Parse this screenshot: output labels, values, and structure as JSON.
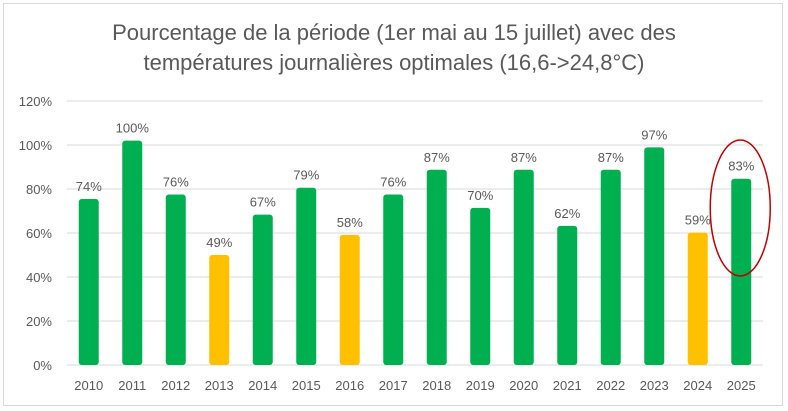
{
  "chart_data": {
    "type": "bar",
    "title_line1": "Pourcentage de la période (1er mai au 15 juillet) avec des",
    "title_line2": "températures journalières optimales  (16,6->24,8°C)",
    "xlabel": "",
    "ylabel": "",
    "ylim": [
      0,
      120
    ],
    "yticks": [
      0,
      20,
      40,
      60,
      80,
      100,
      120
    ],
    "ytick_labels": [
      "0%",
      "20%",
      "40%",
      "60%",
      "80%",
      "100%",
      "120%"
    ],
    "grid": true,
    "categories": [
      "2010",
      "2011",
      "2012",
      "2013",
      "2014",
      "2015",
      "2016",
      "2017",
      "2018",
      "2019",
      "2020",
      "2021",
      "2022",
      "2023",
      "2024",
      "2025"
    ],
    "values": [
      74,
      100,
      76,
      49,
      67,
      79,
      58,
      76,
      87,
      70,
      87,
      62,
      87,
      97,
      59,
      83
    ],
    "data_labels": [
      "74%",
      "100%",
      "76%",
      "49%",
      "67%",
      "79%",
      "58%",
      "76%",
      "87%",
      "70%",
      "87%",
      "62%",
      "87%",
      "97%",
      "59%",
      "83%"
    ],
    "bar_colors": [
      "#00b050",
      "#00b050",
      "#00b050",
      "#ffc000",
      "#00b050",
      "#00b050",
      "#ffc000",
      "#00b050",
      "#00b050",
      "#00b050",
      "#00b050",
      "#00b050",
      "#00b050",
      "#00b050",
      "#ffc000",
      "#00b050"
    ],
    "colors": {
      "good": "#00b050",
      "poor": "#ffc000",
      "highlight_ellipse": "#c00000",
      "gridline": "#d9d9d9",
      "text": "#595959"
    },
    "annotations": [
      {
        "type": "ellipse",
        "target_category": "2025",
        "color": "#c00000"
      }
    ]
  }
}
